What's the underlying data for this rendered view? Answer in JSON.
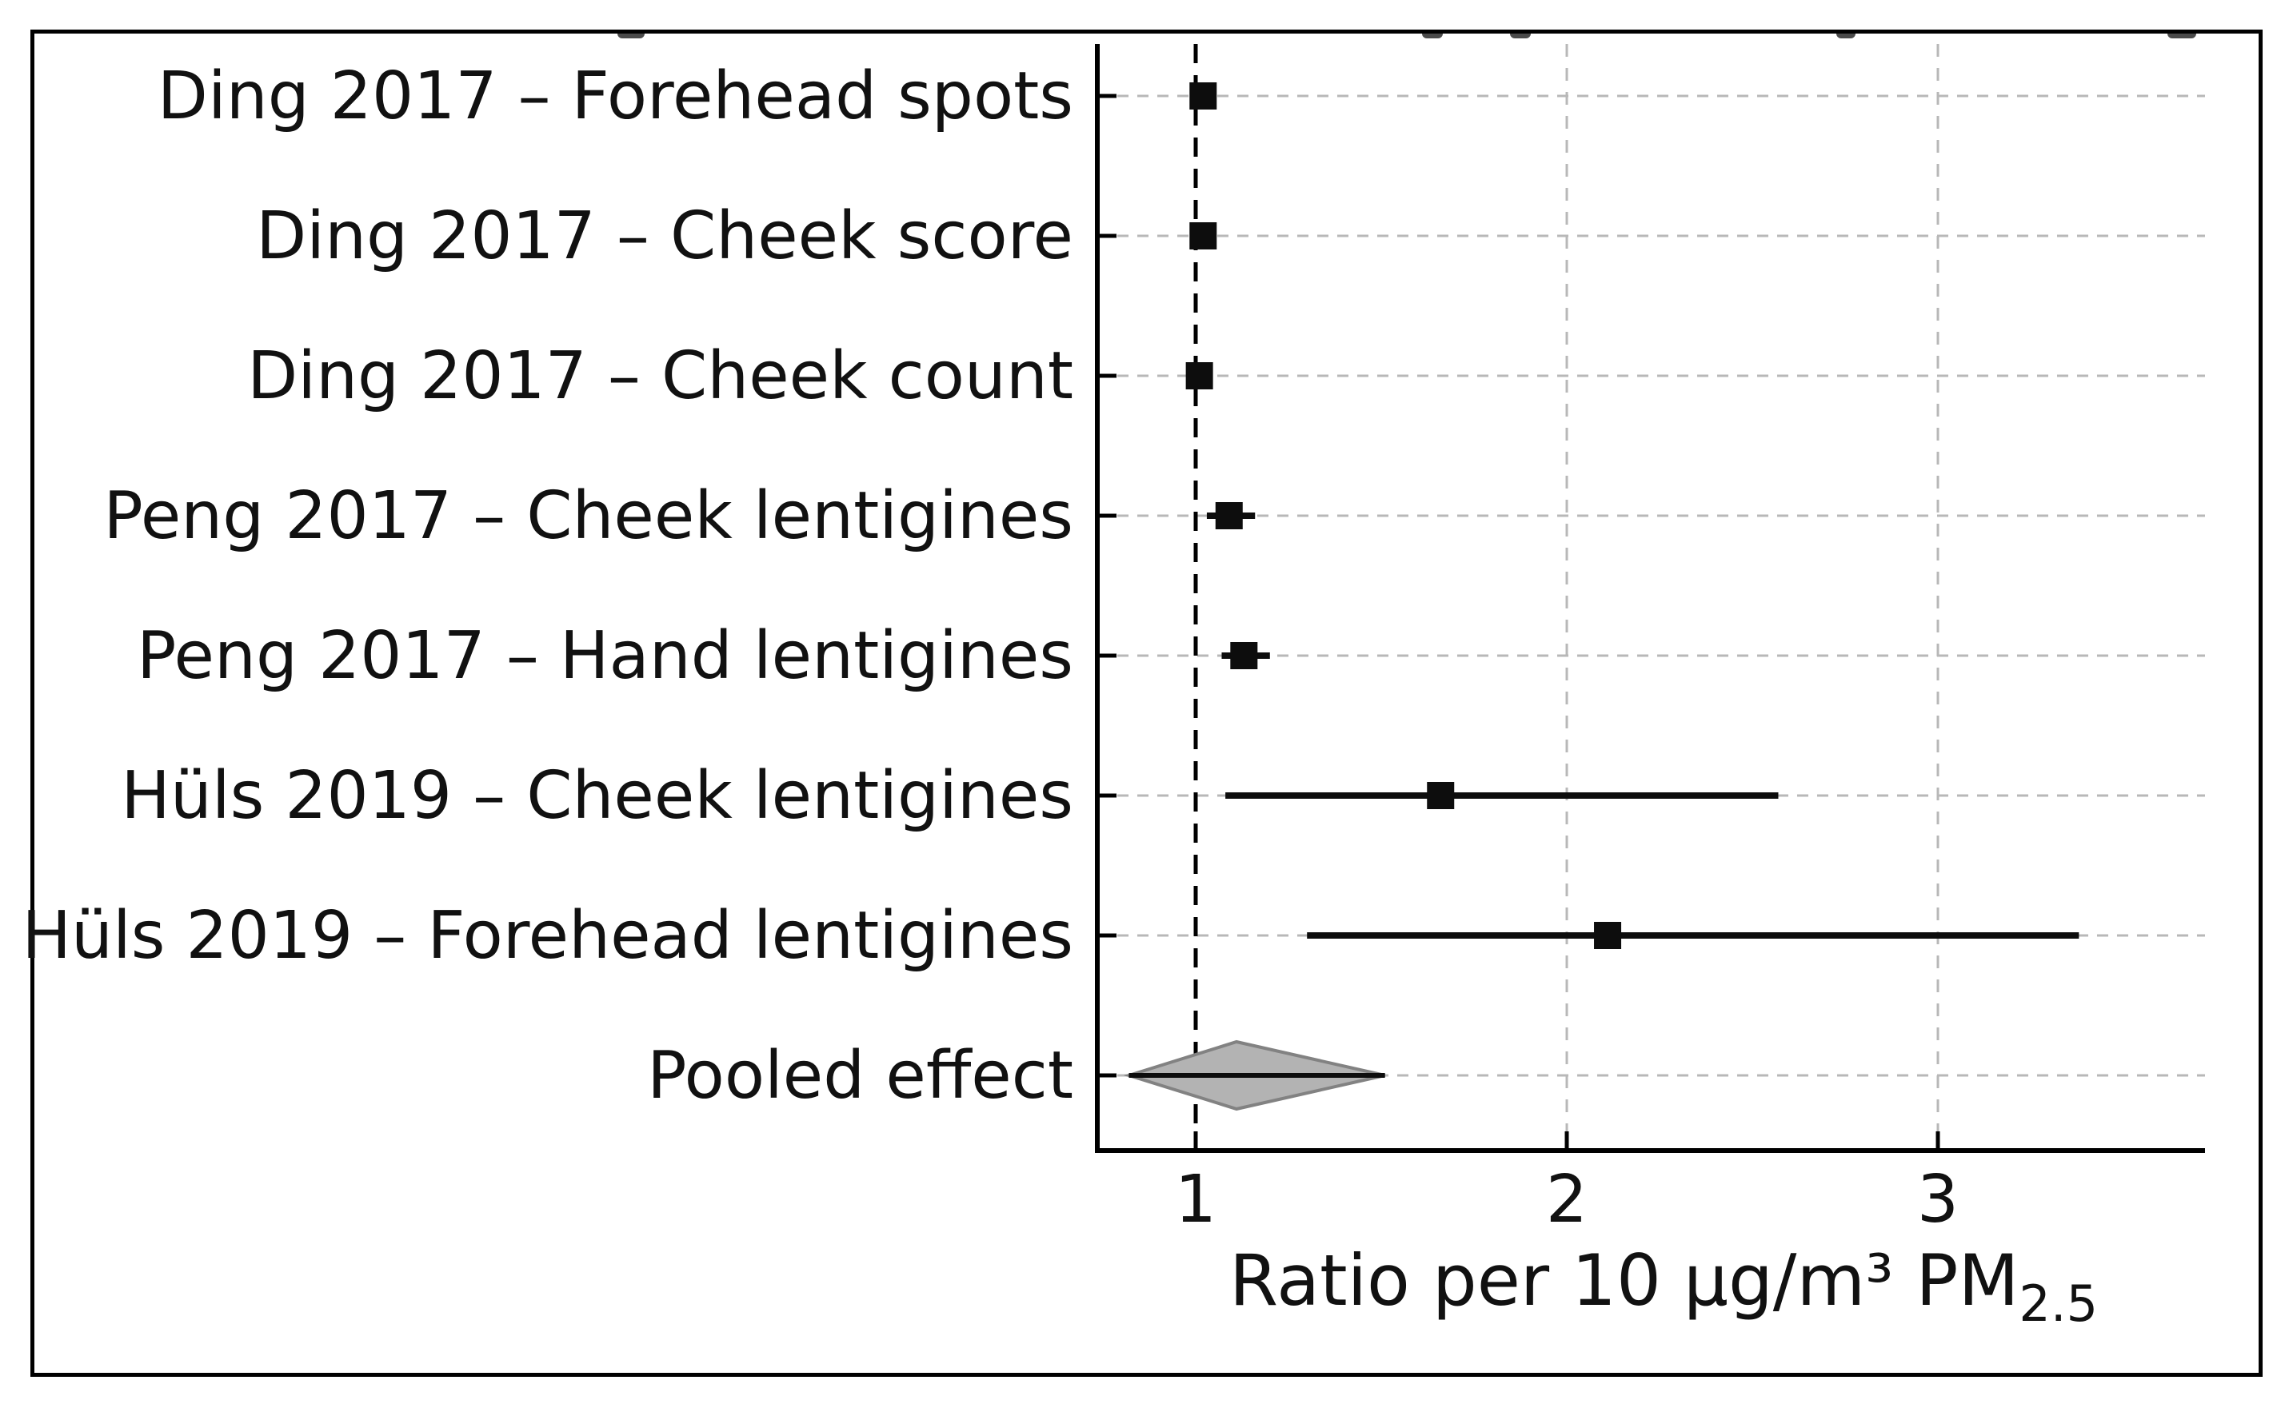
{
  "figure": {
    "background": "#ffffff",
    "border_color": "#000000"
  },
  "chart_data": {
    "type": "forest",
    "title": "",
    "xlabel_main": "Ratio per 10 µg/m³ PM",
    "xlabel_subscript": "2.5",
    "x_ticks": [
      "1",
      "2",
      "3"
    ],
    "x_range": [
      0.74,
      3.72
    ],
    "reference_line_x": 1,
    "grid": "dashed gray horizontal line per study row; dashed gray vertical lines at x=2 and x=3",
    "legend": "none",
    "studies": [
      {
        "label": "Ding 2017 – Forehead spots",
        "estimate": 1.02,
        "ci_low": 1.0,
        "ci_high": 1.05,
        "marker": "square"
      },
      {
        "label": "Ding 2017 – Cheek score",
        "estimate": 1.02,
        "ci_low": 1.0,
        "ci_high": 1.04,
        "marker": "square"
      },
      {
        "label": "Ding 2017 – Cheek count",
        "estimate": 1.01,
        "ci_low": 0.99,
        "ci_high": 1.03,
        "marker": "square"
      },
      {
        "label": "Peng 2017 – Cheek lentigines",
        "estimate": 1.09,
        "ci_low": 1.03,
        "ci_high": 1.16,
        "marker": "square"
      },
      {
        "label": "Peng 2017 – Hand lentigines",
        "estimate": 1.13,
        "ci_low": 1.07,
        "ci_high": 1.2,
        "marker": "square"
      },
      {
        "label": "Hüls 2019 – Cheek lentigines",
        "estimate": 1.66,
        "ci_low": 1.08,
        "ci_high": 2.57,
        "marker": "square"
      },
      {
        "label": "Hüls 2019 – Forehead lentigines",
        "estimate": 2.11,
        "ci_low": 1.3,
        "ci_high": 3.38,
        "marker": "square"
      },
      {
        "label": "Pooled effect",
        "estimate": 1.11,
        "ci_low": 0.82,
        "ci_high": 1.51,
        "marker": "diamond"
      }
    ],
    "colors": {
      "marker": "#0d0d0d",
      "ci_line": "#0d0d0d",
      "reference_line": "#000000",
      "gridline": "#b8b8b8",
      "diamond_fill": "#b3b3b3",
      "diamond_stroke": "#828282",
      "axis": "#000000",
      "text": "#111111"
    }
  }
}
